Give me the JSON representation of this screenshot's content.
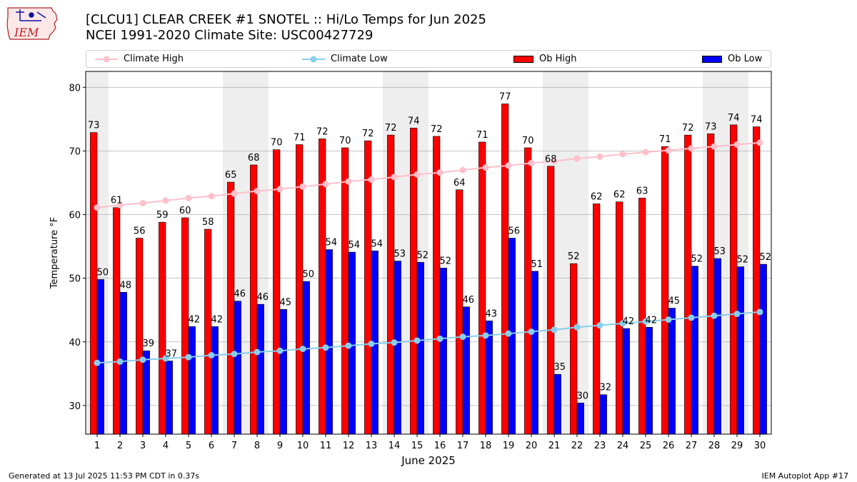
{
  "header": {
    "title_line1": "[CLCU1] CLEAR CREEK #1 SNOTEL :: Hi/Lo Temps for Jun 2025",
    "title_line2": "NCEI 1991-2020 Climate Site: USC00427729",
    "logo_text": "IEM"
  },
  "footer": {
    "generated": "Generated at 13 Jul 2025 11:53 PM CDT in 0.37s",
    "app": "IEM Autoplot App #17"
  },
  "colors": {
    "ob_high": "#ff0000",
    "ob_low": "#0000ff",
    "climate_high": "#ffc0cb",
    "climate_low": "#87ceeb",
    "weekend_shade": "#eeeeee",
    "grid": "#b0b0b0"
  },
  "chart_data": {
    "type": "bar",
    "xlabel": "June 2025",
    "ylabel": "Temperature °F",
    "ylim": [
      25.5,
      82.5
    ],
    "yticks": [
      30,
      40,
      50,
      60,
      70,
      80
    ],
    "grid": "horizontal",
    "legend_position": "top",
    "categories": [
      "1",
      "2",
      "3",
      "4",
      "5",
      "6",
      "7",
      "8",
      "9",
      "10",
      "11",
      "12",
      "13",
      "14",
      "15",
      "16",
      "17",
      "18",
      "19",
      "20",
      "21",
      "22",
      "23",
      "24",
      "25",
      "26",
      "27",
      "28",
      "29",
      "30"
    ],
    "weekend_days": [
      1,
      7,
      8,
      14,
      15,
      21,
      22,
      28,
      29
    ],
    "series": [
      {
        "name": "Ob High",
        "kind": "bar",
        "values": [
          72.9,
          61.1,
          56.3,
          58.8,
          59.5,
          57.7,
          65.1,
          67.8,
          70.2,
          71.0,
          71.9,
          70.5,
          71.6,
          72.5,
          73.6,
          72.3,
          63.9,
          71.4,
          77.4,
          70.5,
          67.6,
          52.3,
          61.7,
          62.0,
          62.6,
          70.7,
          72.5,
          72.7,
          74.1,
          73.8
        ],
        "labels": [
          "73",
          "61",
          "56",
          "59",
          "60",
          "58",
          "65",
          "68",
          "70",
          "71",
          "72",
          "70",
          "72",
          "72",
          "74",
          "72",
          "64",
          "71",
          "77",
          "70",
          "68",
          "52",
          "62",
          "62",
          "63",
          "71",
          "72",
          "73",
          "74",
          "74"
        ]
      },
      {
        "name": "Ob Low",
        "kind": "bar",
        "values": [
          49.8,
          47.8,
          38.6,
          37.0,
          42.4,
          42.4,
          46.4,
          45.9,
          45.1,
          49.5,
          54.5,
          54.1,
          54.3,
          52.7,
          52.5,
          51.6,
          45.5,
          43.3,
          56.3,
          51.1,
          34.9,
          30.4,
          31.7,
          42.1,
          42.3,
          45.3,
          51.9,
          53.1,
          51.8,
          52.2
        ],
        "labels": [
          "50",
          "48",
          "39",
          "37",
          "42",
          "42",
          "46",
          "46",
          "45",
          "50",
          "54",
          "54",
          "54",
          "53",
          "52",
          "52",
          "46",
          "43",
          "56",
          "51",
          "35",
          "30",
          "32",
          "42",
          "42",
          "45",
          "52",
          "53",
          "52",
          "52"
        ]
      },
      {
        "name": "Climate High",
        "kind": "line",
        "values": [
          61.1,
          61.5,
          61.8,
          62.2,
          62.6,
          62.9,
          63.3,
          63.7,
          64.0,
          64.4,
          64.8,
          65.2,
          65.5,
          65.9,
          66.3,
          66.6,
          67.0,
          67.4,
          67.7,
          68.1,
          68.4,
          68.8,
          69.1,
          69.5,
          69.8,
          70.1,
          70.4,
          70.7,
          71.0,
          71.3
        ]
      },
      {
        "name": "Climate Low",
        "kind": "line",
        "values": [
          36.7,
          36.9,
          37.2,
          37.4,
          37.6,
          37.9,
          38.1,
          38.4,
          38.6,
          38.9,
          39.1,
          39.4,
          39.7,
          39.9,
          40.2,
          40.5,
          40.8,
          41.0,
          41.3,
          41.6,
          41.9,
          42.3,
          42.6,
          42.9,
          43.2,
          43.5,
          43.8,
          44.1,
          44.4,
          44.7
        ]
      }
    ]
  }
}
